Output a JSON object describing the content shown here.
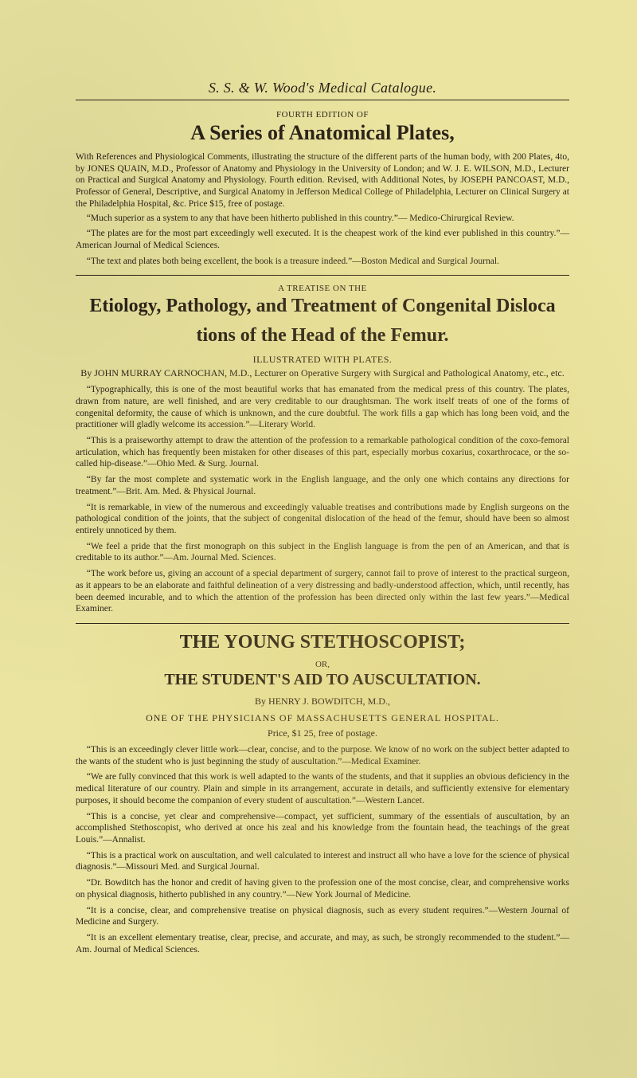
{
  "catalogue_header": "S. S. & W. Wood's Medical Catalogue.",
  "sec1": {
    "super": "FOURTH EDITION OF",
    "title": "A Series of Anatomical Plates,",
    "intro": "With References and Physiological Comments, illustrating the structure of the different parts of the human body, with 200 Plates, 4to, by JONES QUAIN, M.D., Professor of Anatomy and Physiology in the University of London; and W. J. E. WILSON, M.D., Lecturer on Practical and Surgical Anatomy and Physiology. Fourth edition. Revised, with Additional Notes, by JOSEPH PANCOAST, M.D., Professor of General, Descriptive, and Surgical Anatomy in Jefferson Medical College of Philadelphia, Lecturer on Clinical Surgery at the Philadelphia Hospital, &c. Price $15, free of postage.",
    "q1": "“Much superior as a system to any that have been hitherto published in this country.”— Medico-Chirurgical Review.",
    "q2": "“The plates are for the most part exceedingly well executed. It is the cheapest work of the kind ever published in this country.”—American Journal of Medical Sciences.",
    "q3": "“The text and plates both being excellent, the book is a treasure indeed.”—Boston Medical and Surgical Journal."
  },
  "sec2": {
    "super": "A TREATISE ON THE",
    "title_l1": "Etiology, Pathology, and Treatment of Congenital Disloca",
    "title_l2": "tions of the Head of the Femur.",
    "illus": "ILLUSTRATED WITH PLATES.",
    "byline": "By JOHN MURRAY CARNOCHAN, M.D., Lecturer on Operative Surgery with Surgical and Pathological Anatomy, etc., etc.",
    "p1": "“Typographically, this is one of the most beautiful works that has emanated from the medical press of this country. The plates, drawn from nature, are well finished, and are very creditable to our draughtsman. The work itself treats of one of the forms of congenital deformity, the cause of which is unknown, and the cure doubtful. The work fills a gap which has long been void, and the practitioner will gladly welcome its accession.”—Literary World.",
    "p2": "“This is a praiseworthy attempt to draw the attention of the profession to a remarkable pathological condition of the coxo-femoral articulation, which has frequently been mistaken for other diseases of this part, especially morbus coxarius, coxarthrocace, or the so-called hip-disease.”—Ohio Med. & Surg. Journal.",
    "p3": "“By far the most complete and systematic work in the English language, and the only one which contains any directions for treatment.”—Brit. Am. Med. & Physical Journal.",
    "p4": "“It is remarkable, in view of the numerous and exceedingly valuable treatises and contributions made by English surgeons on the pathological condition of the joints, that the subject of congenital dislocation of the head of the femur, should have been so almost entirely unnoticed by them.",
    "p5": "“We feel a pride that the first monograph on this subject in the English language is from the pen of an American, and that is creditable to its author.”—Am. Journal Med. Sciences.",
    "p6": "“The work before us, giving an account of a special department of surgery, cannot fail to prove of interest to the practical surgeon, as it appears to be an elaborate and faithful delineation of a very distressing and badly-understood affection, which, until recently, has been deemed incurable, and to which the attention of the profession has been directed only within the last few years.”—Medical Examiner."
  },
  "sec3": {
    "title": "THE YOUNG STETHOSCOPIST;",
    "or": "OR,",
    "subtitle": "THE STUDENT'S AID TO AUSCULTATION.",
    "byline": "By HENRY J. BOWDITCH, M.D.,",
    "affil": "ONE OF THE PHYSICIANS OF MASSACHUSETTS GENERAL HOSPITAL.",
    "price": "Price, $1 25, free of postage.",
    "p1": "“This is an exceedingly clever little work—clear, concise, and to the purpose. We know of no work on the subject better adapted to the wants of the student who is just beginning the study of auscultation.”—Medical Examiner.",
    "p2": "“We are fully convinced that this work is well adapted to the wants of the students, and that it supplies an obvious deficiency in the medical literature of our country. Plain and simple in its arrangement, accurate in details, and sufficiently extensive for elementary purposes, it should become the companion of every student of auscultation.”—Western Lancet.",
    "p3": "“This is a concise, yet clear and comprehensive—compact, yet sufficient, summary of the essentials of auscultation, by an accomplished Stethoscopist, who derived at once his zeal and his knowledge from the fountain head, the teachings of the great Louis.”—Annalist.",
    "p4": "“This is a practical work on auscultation, and well calculated to interest and instruct all who have a love for the science of physical diagnosis.”—Missouri Med. and Surgical Journal.",
    "p5": "“Dr. Bowditch has the honor and credit of having given to the profession one of the most concise, clear, and comprehensive works on physical diagnosis, hitherto published in any country.”—New York Journal of Medicine.",
    "p6": "“It is a concise, clear, and comprehensive treatise on physical diagnosis, such as every student requires.”—Western Journal of Medicine and Surgery.",
    "p7": "“It is an excellent elementary treatise, clear, precise, and accurate, and may, as such, be strongly recommended to the student.”—Am. Journal of Medical Sciences."
  }
}
